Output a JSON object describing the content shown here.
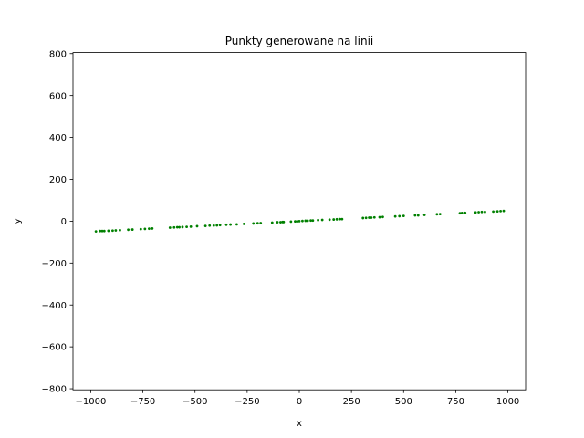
{
  "chart_data": {
    "type": "scatter",
    "title": "Punkty generowane na linii",
    "xlabel": "x",
    "ylabel": "y",
    "xlim": [
      -1085,
      1085
    ],
    "ylim": [
      -805,
      805
    ],
    "xticks": [
      -1000,
      -750,
      -500,
      -250,
      0,
      250,
      500,
      750,
      1000
    ],
    "xtick_labels": [
      "−1000",
      "−750",
      "−500",
      "−250",
      "0",
      "250",
      "500",
      "750",
      "1000"
    ],
    "yticks": [
      -800,
      -600,
      -400,
      -200,
      0,
      200,
      400,
      600,
      800
    ],
    "ytick_labels": [
      "−800",
      "−600",
      "−400",
      "−200",
      "0",
      "200",
      "400",
      "600",
      "800"
    ],
    "grid": false,
    "marker_color": "#008000",
    "series": [
      {
        "x": [
          -975,
          -955,
          -945,
          -935,
          -915,
          -895,
          -880,
          -860,
          -820,
          -800,
          -760,
          -740,
          -720,
          -705,
          -620,
          -600,
          -585,
          -575,
          -560,
          -540,
          -520,
          -490,
          -450,
          -430,
          -410,
          -395,
          -380,
          -350,
          -330,
          -300,
          -265,
          -220,
          -200,
          -185,
          -130,
          -105,
          -90,
          -80,
          -75,
          -40,
          -20,
          -10,
          0,
          15,
          30,
          40,
          55,
          65,
          90,
          110,
          145,
          165,
          180,
          195,
          205,
          305,
          320,
          335,
          345,
          360,
          385,
          400,
          460,
          480,
          500,
          555,
          570,
          600,
          660,
          675,
          770,
          780,
          795,
          845,
          860,
          875,
          890,
          930,
          950,
          965,
          980
        ],
        "y": [
          -49,
          -47,
          -47,
          -47,
          -46,
          -45,
          -44,
          -43,
          -41,
          -40,
          -38,
          -37,
          -36,
          -35,
          -31,
          -30,
          -29,
          -29,
          -28,
          -27,
          -26,
          -24,
          -23,
          -21,
          -21,
          -20,
          -19,
          -17,
          -16,
          -15,
          -13,
          -11,
          -10,
          -9,
          -7,
          -5,
          -5,
          -4,
          -4,
          -2,
          -1,
          -1,
          0,
          1,
          2,
          2,
          3,
          3,
          5,
          6,
          7,
          8,
          9,
          10,
          10,
          15,
          16,
          17,
          17,
          18,
          19,
          20,
          23,
          24,
          25,
          28,
          28,
          30,
          33,
          34,
          38,
          39,
          40,
          42,
          43,
          44,
          44,
          46,
          47,
          48,
          49
        ]
      }
    ]
  }
}
